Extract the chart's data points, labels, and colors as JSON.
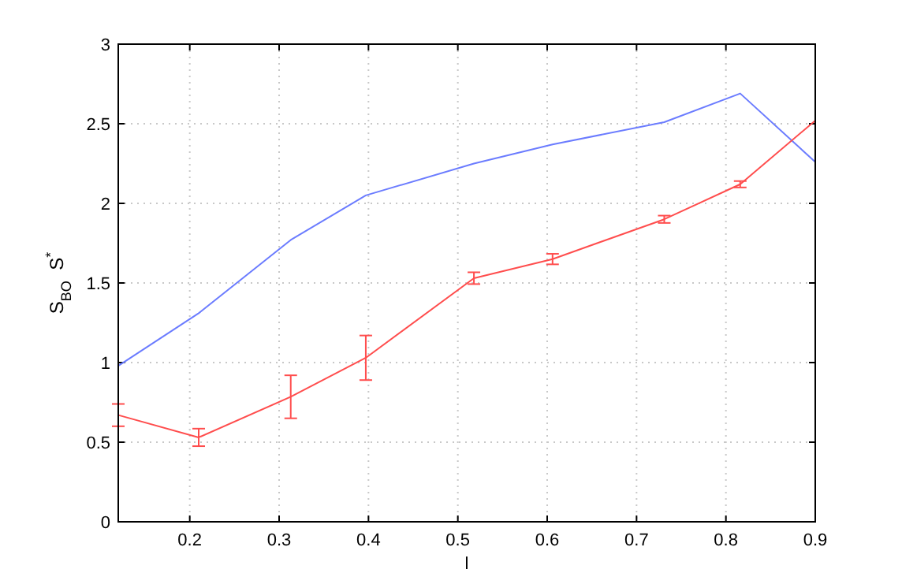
{
  "chart_data": {
    "type": "line",
    "xlabel": "l",
    "ylabel": "S$_{BO}$  S$^{*}$",
    "x": [
      0.12,
      0.21,
      0.313,
      0.397,
      0.518,
      0.606,
      0.731,
      0.816,
      0.9
    ],
    "series": [
      {
        "color": "#6b7cff",
        "values": [
          0.98,
          1.31,
          1.77,
          2.05,
          2.25,
          2.37,
          2.51,
          2.69,
          2.26
        ]
      },
      {
        "color": "#ff4d4d",
        "values": [
          0.67,
          0.53,
          0.785,
          1.03,
          1.53,
          1.65,
          1.9,
          2.12,
          2.52
        ],
        "errors": [
          0.07,
          0.055,
          0.135,
          0.14,
          0.037,
          0.033,
          0.023,
          0.02,
          null
        ]
      }
    ],
    "xlim": [
      0.12,
      0.9
    ],
    "xticks": [
      0.2,
      0.3,
      0.4,
      0.5,
      0.6,
      0.7,
      0.8,
      0.9
    ],
    "ylim": [
      0,
      3
    ],
    "yticks": [
      0,
      0.5,
      1,
      1.5,
      2,
      2.5,
      3
    ],
    "grid": true
  }
}
